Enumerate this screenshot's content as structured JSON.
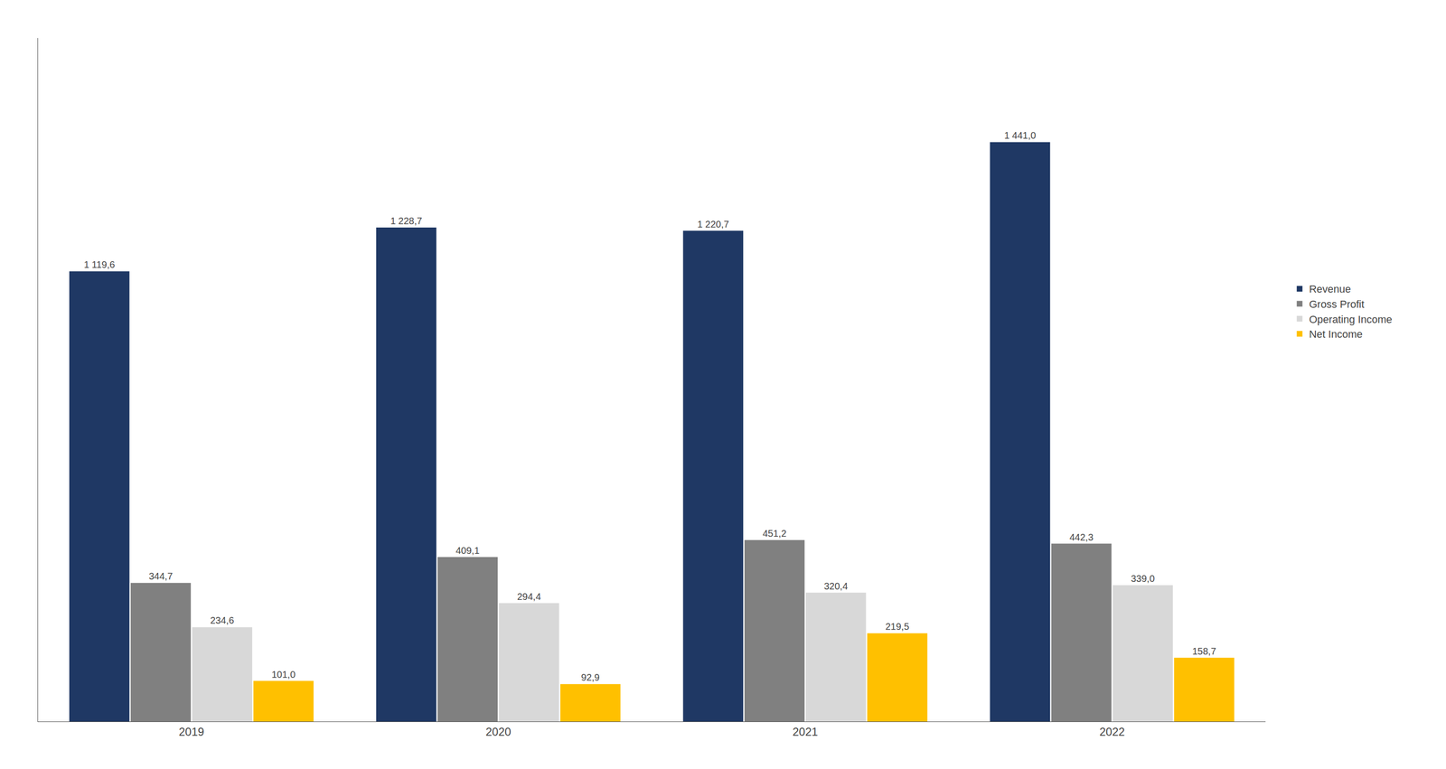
{
  "chart_data": {
    "type": "bar",
    "categories": [
      "2019",
      "2020",
      "2021",
      "2022"
    ],
    "series": [
      {
        "name": "Revenue",
        "color": "#1F3864",
        "values": [
          1119.6,
          1228.7,
          1220.7,
          1441.0
        ],
        "value_labels": [
          "1 119,6",
          "1 228,7",
          "1 220,7",
          "1 441,0"
        ]
      },
      {
        "name": "Gross Profit",
        "color": "#808080",
        "values": [
          344.7,
          409.1,
          451.2,
          442.3
        ],
        "value_labels": [
          "344,7",
          "409,1",
          "451,2",
          "442,3"
        ]
      },
      {
        "name": "Operating Income",
        "color": "#D8D8D8",
        "values": [
          234.6,
          294.4,
          320.4,
          339.0
        ],
        "value_labels": [
          "234,6",
          "294,4",
          "320,4",
          "339,0"
        ]
      },
      {
        "name": "Net Income",
        "color": "#FFC000",
        "values": [
          101.0,
          92.9,
          219.5,
          158.7
        ],
        "value_labels": [
          "101,0",
          "92,9",
          "219,5",
          "158,7"
        ]
      }
    ],
    "ylim": [
      0,
      1700
    ],
    "yticks": [],
    "grid": false,
    "legend": "right",
    "data_labels": true,
    "tick_labels": "x"
  }
}
